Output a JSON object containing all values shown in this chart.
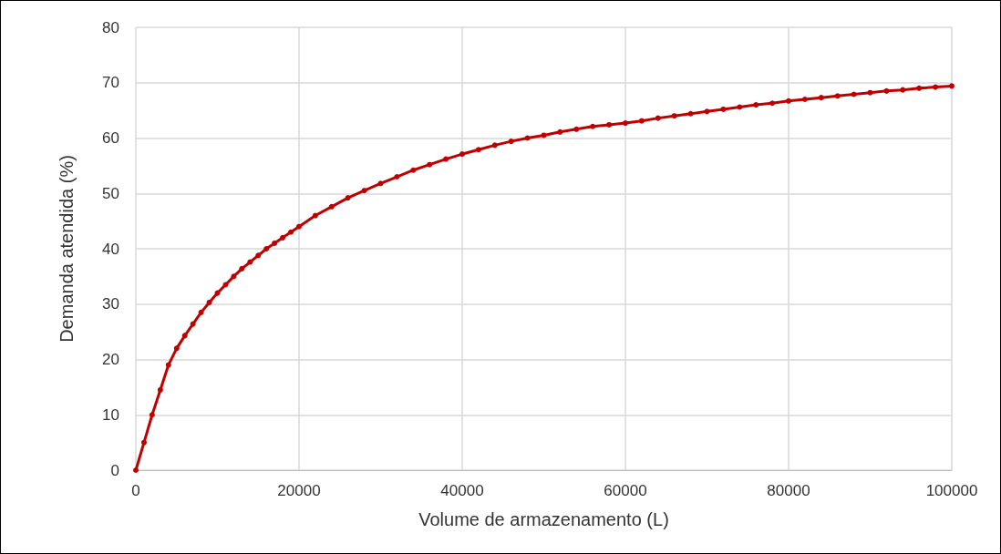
{
  "chart_data": {
    "type": "line",
    "xlabel": "Volume de armazenamento (L)",
    "ylabel": "Demanda atendida (%)",
    "x": [
      0,
      1000,
      2000,
      3000,
      4000,
      5000,
      6000,
      7000,
      8000,
      9000,
      10000,
      11000,
      12000,
      13000,
      14000,
      15000,
      16000,
      17000,
      18000,
      19000,
      20000,
      22000,
      24000,
      26000,
      28000,
      30000,
      32000,
      34000,
      36000,
      38000,
      40000,
      42000,
      44000,
      46000,
      48000,
      50000,
      52000,
      54000,
      56000,
      58000,
      60000,
      62000,
      64000,
      66000,
      68000,
      70000,
      72000,
      74000,
      76000,
      78000,
      80000,
      82000,
      84000,
      86000,
      88000,
      90000,
      92000,
      94000,
      96000,
      98000,
      100000
    ],
    "series": [
      {
        "color": "#c00000",
        "values": [
          0,
          5,
          10,
          14.5,
          19,
          22,
          24.3,
          26.4,
          28.5,
          30.3,
          32,
          33.5,
          35,
          36.4,
          37.6,
          38.8,
          40,
          41,
          42,
          43,
          44,
          46,
          47.6,
          49.2,
          50.5,
          51.8,
          53,
          54.2,
          55.2,
          56.2,
          57.1,
          57.9,
          58.7,
          59.4,
          60,
          60.5,
          61.1,
          61.6,
          62.1,
          62.4,
          62.7,
          63.1,
          63.6,
          64,
          64.4,
          64.8,
          65.2,
          65.6,
          66,
          66.3,
          66.7,
          67,
          67.3,
          67.6,
          67.9,
          68.2,
          68.5,
          68.7,
          69,
          69.2,
          69.4
        ]
      }
    ],
    "xlim": [
      0,
      100000
    ],
    "xticks": [
      0,
      20000,
      40000,
      60000,
      80000,
      100000
    ],
    "ylim": [
      0,
      80
    ],
    "yticks": [
      0,
      10,
      20,
      30,
      40,
      50,
      60,
      70,
      80
    ],
    "grid": true,
    "marker": "circle",
    "line_style": "solid"
  }
}
